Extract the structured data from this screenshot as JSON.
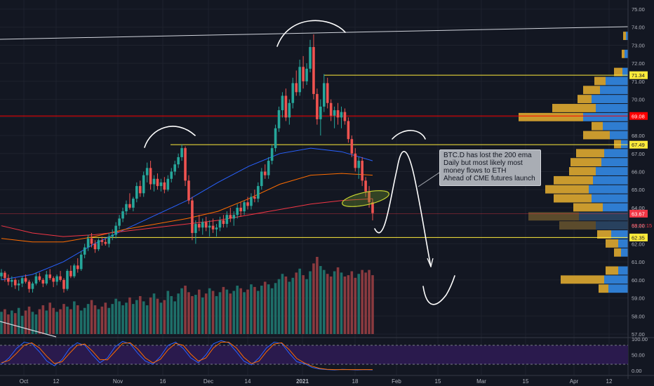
{
  "chart_data": [
    {
      "type": "candlestick",
      "symbol_note": "BTC.D",
      "ylim": [
        57.0,
        75.5
      ],
      "y_ticks": [
        "75.00",
        "74.00",
        "73.00",
        "72.00",
        "71.00",
        "70.00",
        "69.00",
        "68.00",
        "67.00",
        "66.00",
        "65.00",
        "64.00",
        "63.00",
        "62.00",
        "61.00",
        "60.00",
        "59.00",
        "58.00",
        "57.00"
      ],
      "x_ticks": [
        "Oct",
        "12",
        "Nov",
        "16",
        "Dec",
        "14",
        "2021",
        "18",
        "Feb",
        "15",
        "Mar",
        "15",
        "Apr",
        "12"
      ],
      "candles_ohlc": [
        [
          60.2,
          60.6,
          60.0,
          60.4
        ],
        [
          60.4,
          60.5,
          59.9,
          60.1
        ],
        [
          60.1,
          60.3,
          59.7,
          59.9
        ],
        [
          59.9,
          60.2,
          59.6,
          60.0
        ],
        [
          60.0,
          60.1,
          59.5,
          59.7
        ],
        [
          59.7,
          60.0,
          59.4,
          59.8
        ],
        [
          59.8,
          60.2,
          59.6,
          60.1
        ],
        [
          60.1,
          60.3,
          59.8,
          59.9
        ],
        [
          59.9,
          60.0,
          59.3,
          59.5
        ],
        [
          59.5,
          59.9,
          59.3,
          59.8
        ],
        [
          59.8,
          60.4,
          59.7,
          60.2
        ],
        [
          60.2,
          60.4,
          59.9,
          60.0
        ],
        [
          60.0,
          60.1,
          59.6,
          59.8
        ],
        [
          59.8,
          60.5,
          59.7,
          60.3
        ],
        [
          60.3,
          60.6,
          60.0,
          60.1
        ],
        [
          60.1,
          60.2,
          59.6,
          59.9
        ],
        [
          59.9,
          60.3,
          59.7,
          60.2
        ],
        [
          60.2,
          60.5,
          59.9,
          60.0
        ],
        [
          60.0,
          60.1,
          59.3,
          59.5
        ],
        [
          59.5,
          60.6,
          59.4,
          60.5
        ],
        [
          60.5,
          60.8,
          60.1,
          60.2
        ],
        [
          60.2,
          60.9,
          60.1,
          60.8
        ],
        [
          60.8,
          61.2,
          60.4,
          60.6
        ],
        [
          60.6,
          61.6,
          60.5,
          61.4
        ],
        [
          61.4,
          62.0,
          61.2,
          61.8
        ],
        [
          61.8,
          62.5,
          61.6,
          62.3
        ],
        [
          62.3,
          62.6,
          61.8,
          62.0
        ],
        [
          62.0,
          62.2,
          61.5,
          61.7
        ],
        [
          61.7,
          62.3,
          61.6,
          62.2
        ],
        [
          62.2,
          62.4,
          61.9,
          62.1
        ],
        [
          62.1,
          62.3,
          61.9,
          62.0
        ],
        [
          62.0,
          62.6,
          61.8,
          62.4
        ],
        [
          62.4,
          62.8,
          62.2,
          62.5
        ],
        [
          62.5,
          63.2,
          62.3,
          63.0
        ],
        [
          63.0,
          63.6,
          62.8,
          63.4
        ],
        [
          63.4,
          64.0,
          63.2,
          63.8
        ],
        [
          63.8,
          64.4,
          63.6,
          64.2
        ],
        [
          64.2,
          64.8,
          63.9,
          64.0
        ],
        [
          64.0,
          64.6,
          63.8,
          64.5
        ],
        [
          64.5,
          65.4,
          64.3,
          65.2
        ],
        [
          65.2,
          65.5,
          64.6,
          64.8
        ],
        [
          64.8,
          66.0,
          64.6,
          65.8
        ],
        [
          65.8,
          66.5,
          65.4,
          66.2
        ],
        [
          66.2,
          66.6,
          65.0,
          65.3
        ],
        [
          65.3,
          65.8,
          64.9,
          65.6
        ],
        [
          65.6,
          65.9,
          65.0,
          65.2
        ],
        [
          65.2,
          65.6,
          64.9,
          65.4
        ],
        [
          65.4,
          65.7,
          64.8,
          65.0
        ],
        [
          65.0,
          65.8,
          64.9,
          65.6
        ],
        [
          65.6,
          66.2,
          65.4,
          66.0
        ],
        [
          66.0,
          66.6,
          65.8,
          66.4
        ],
        [
          66.4,
          67.0,
          66.2,
          66.8
        ],
        [
          66.8,
          67.5,
          66.6,
          67.3
        ],
        [
          67.3,
          67.4,
          65.2,
          65.5
        ],
        [
          65.5,
          65.8,
          64.2,
          64.4
        ],
        [
          64.4,
          64.6,
          62.2,
          62.6
        ],
        [
          62.6,
          63.3,
          62.0,
          63.1
        ],
        [
          63.1,
          63.6,
          62.7,
          62.9
        ],
        [
          62.9,
          63.4,
          62.5,
          63.2
        ],
        [
          63.2,
          63.5,
          62.7,
          62.9
        ],
        [
          62.9,
          63.3,
          62.4,
          63.0
        ],
        [
          63.0,
          63.4,
          62.6,
          62.8
        ],
        [
          62.8,
          63.1,
          62.4,
          62.9
        ],
        [
          62.9,
          63.5,
          62.7,
          63.3
        ],
        [
          63.3,
          63.6,
          62.9,
          63.1
        ],
        [
          63.1,
          63.8,
          62.9,
          63.6
        ],
        [
          63.6,
          64.0,
          63.2,
          63.4
        ],
        [
          63.4,
          63.8,
          63.0,
          63.6
        ],
        [
          63.6,
          64.2,
          63.4,
          64.0
        ],
        [
          64.0,
          64.3,
          63.5,
          63.8
        ],
        [
          63.8,
          64.4,
          63.6,
          64.3
        ],
        [
          64.3,
          64.6,
          63.9,
          64.1
        ],
        [
          64.1,
          64.8,
          63.9,
          64.6
        ],
        [
          64.6,
          65.0,
          64.3,
          64.5
        ],
        [
          64.5,
          65.4,
          64.3,
          65.2
        ],
        [
          65.2,
          66.2,
          65.0,
          66.0
        ],
        [
          66.0,
          66.4,
          65.6,
          65.8
        ],
        [
          65.8,
          66.8,
          65.6,
          66.6
        ],
        [
          66.6,
          67.5,
          66.4,
          67.3
        ],
        [
          67.3,
          68.6,
          67.1,
          68.4
        ],
        [
          68.4,
          69.6,
          68.2,
          69.4
        ],
        [
          69.4,
          70.4,
          69.0,
          70.2
        ],
        [
          70.2,
          70.6,
          68.8,
          69.0
        ],
        [
          69.0,
          70.0,
          68.6,
          69.8
        ],
        [
          69.8,
          71.2,
          69.5,
          70.9
        ],
        [
          70.9,
          71.6,
          70.2,
          70.4
        ],
        [
          70.4,
          72.2,
          70.2,
          71.8
        ],
        [
          71.8,
          72.4,
          70.6,
          71.0
        ],
        [
          71.0,
          72.0,
          70.8,
          71.7
        ],
        [
          71.7,
          73.3,
          71.5,
          72.9
        ],
        [
          72.9,
          73.6,
          70.0,
          70.3
        ],
        [
          70.3,
          70.6,
          68.6,
          68.9
        ],
        [
          68.9,
          70.0,
          68.0,
          69.6
        ],
        [
          69.6,
          71.4,
          69.3,
          70.9
        ],
        [
          70.9,
          71.2,
          69.5,
          69.8
        ],
        [
          69.8,
          70.0,
          68.8,
          69.1
        ],
        [
          69.1,
          69.6,
          68.4,
          69.4
        ],
        [
          69.4,
          69.8,
          68.6,
          69.0
        ],
        [
          69.0,
          69.6,
          68.4,
          69.3
        ],
        [
          69.3,
          69.5,
          68.6,
          68.8
        ],
        [
          68.8,
          69.0,
          67.6,
          67.8
        ],
        [
          67.8,
          68.0,
          66.8,
          67.0
        ],
        [
          67.0,
          67.3,
          66.0,
          66.2
        ],
        [
          66.2,
          66.8,
          65.6,
          66.6
        ],
        [
          66.6,
          66.8,
          65.2,
          65.5
        ],
        [
          65.5,
          65.7,
          64.6,
          64.9
        ],
        [
          64.9,
          65.2,
          64.0,
          64.3
        ],
        [
          64.3,
          64.5,
          63.3,
          63.7
        ]
      ],
      "volume": [
        34,
        38,
        30,
        36,
        32,
        40,
        28,
        36,
        42,
        34,
        30,
        38,
        44,
        36,
        48,
        40,
        34,
        38,
        46,
        42,
        38,
        50,
        44,
        36,
        40,
        46,
        52,
        44,
        38,
        42,
        48,
        40,
        46,
        54,
        50,
        44,
        48,
        56,
        46,
        52,
        58,
        50,
        44,
        56,
        62,
        54,
        48,
        52,
        66,
        58,
        50,
        62,
        70,
        74,
        64,
        58,
        60,
        68,
        56,
        62,
        70,
        66,
        58,
        64,
        72,
        68,
        62,
        66,
        74,
        70,
        64,
        68,
        76,
        72,
        66,
        74,
        80,
        76,
        70,
        78,
        84,
        92,
        88,
        80,
        86,
        94,
        100,
        90,
        84,
        96,
        108,
        118,
        104,
        98,
        92,
        88,
        96,
        102,
        94,
        88,
        90,
        96,
        86,
        92,
        98,
        94,
        98,
        90
      ],
      "ema_50": {
        "values": [
          60.0,
          60.3,
          61.0,
          62.0,
          62.8,
          63.6,
          64.4,
          65.4,
          66.3,
          67.0,
          67.3,
          67.1,
          66.6
        ],
        "color": "#2962ff"
      },
      "ema_100": {
        "values": [
          62.3,
          62.1,
          62.1,
          62.4,
          62.8,
          63.1,
          63.4,
          63.8,
          64.5,
          65.3,
          65.8,
          65.9,
          65.8
        ],
        "color": "#ff6d00"
      },
      "ema_200": {
        "values": [
          63.0,
          62.6,
          62.4,
          62.5,
          62.7,
          62.9,
          63.1,
          63.3,
          63.6,
          63.9,
          64.2,
          64.4,
          64.5
        ],
        "color": "#f23645"
      },
      "levels": [
        {
          "value": 71.34,
          "label": "71.34",
          "color": "#ffeb3b"
        },
        {
          "value": 69.08,
          "label": "69.08",
          "color": "#ff0000"
        },
        {
          "value": 67.49,
          "label": "67.49",
          "color": "#ffeb3b"
        },
        {
          "value": 63.67,
          "label": "63.67",
          "color": "#f23645"
        },
        {
          "value": 62.35,
          "label": "62.35",
          "color": "#ffeb3b"
        }
      ],
      "countdown": "08:22:15",
      "volume_profile": [
        {
          "price": 73.5,
          "up": 4,
          "down": 3
        },
        {
          "price": 72.5,
          "up": 4,
          "down": 5
        },
        {
          "price": 71.5,
          "up": 12,
          "down": 8
        },
        {
          "price": 71.0,
          "up": 16,
          "down": 32
        },
        {
          "price": 70.5,
          "up": 24,
          "down": 40
        },
        {
          "price": 70.0,
          "up": 20,
          "down": 52
        },
        {
          "price": 69.5,
          "up": 62,
          "down": 46
        },
        {
          "price": 69.0,
          "up": 92,
          "down": 64
        },
        {
          "price": 68.5,
          "up": 16,
          "down": 36
        },
        {
          "price": 68.0,
          "up": 38,
          "down": 26
        },
        {
          "price": 67.5,
          "up": 10,
          "down": 10
        },
        {
          "price": 67.0,
          "up": 40,
          "down": 34
        },
        {
          "price": 66.5,
          "up": 44,
          "down": 38
        },
        {
          "price": 66.0,
          "up": 38,
          "down": 46
        },
        {
          "price": 65.5,
          "up": 56,
          "down": 50
        },
        {
          "price": 65.0,
          "up": 62,
          "down": 56
        },
        {
          "price": 64.5,
          "up": 54,
          "down": 52
        },
        {
          "price": 64.0,
          "up": 42,
          "down": 36
        },
        {
          "price": 63.5,
          "up": 72,
          "down": 70
        },
        {
          "price": 63.0,
          "up": 52,
          "down": 46
        },
        {
          "price": 62.5,
          "up": 20,
          "down": 24
        },
        {
          "price": 62.0,
          "up": 18,
          "down": 14
        },
        {
          "price": 61.5,
          "up": 10,
          "down": 10
        },
        {
          "price": 60.5,
          "up": 18,
          "down": 14
        },
        {
          "price": 60.0,
          "up": 62,
          "down": 34
        },
        {
          "price": 59.5,
          "up": 14,
          "down": 28
        }
      ],
      "annotation_lines": [
        "BTC.D has lost the 200 ema",
        "Daily but most likely most",
        "money flows to ETH",
        "Ahead of CME futures launch"
      ]
    },
    {
      "type": "line",
      "indicator": "stochastic_rsi",
      "ylim": [
        -5,
        105
      ],
      "y_ticks": [
        "100.00",
        "50.00",
        "0.00"
      ],
      "bands": [
        80,
        20
      ],
      "k": [
        20,
        40,
        70,
        90,
        85,
        60,
        30,
        15,
        35,
        70,
        88,
        80,
        50,
        25,
        40,
        75,
        92,
        85,
        55,
        30,
        20,
        45,
        80,
        90,
        70,
        40,
        25,
        50,
        85,
        95,
        88,
        60,
        30,
        18,
        40,
        72,
        90,
        86,
        55,
        28,
        22,
        10,
        5,
        3,
        2,
        4,
        3,
        2,
        3,
        2
      ],
      "d": [
        25,
        32,
        55,
        80,
        88,
        72,
        45,
        22,
        28,
        55,
        80,
        84,
        62,
        35,
        34,
        60,
        86,
        88,
        68,
        40,
        24,
        36,
        66,
        86,
        80,
        52,
        30,
        40,
        72,
        90,
        90,
        72,
        42,
        22,
        30,
        60,
        84,
        88,
        66,
        38,
        24,
        14,
        7,
        4,
        3,
        3,
        3,
        3,
        3,
        3
      ]
    }
  ]
}
